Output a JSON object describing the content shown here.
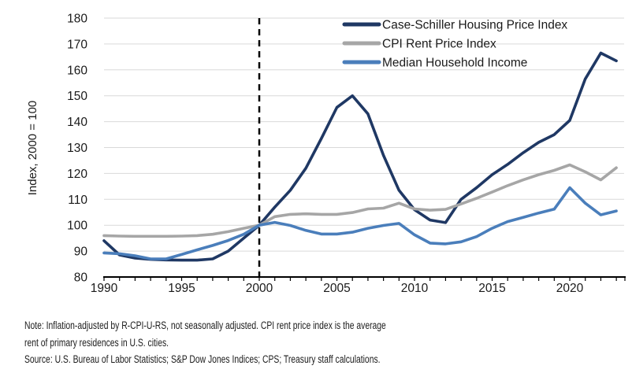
{
  "figure": {
    "note_lines": [
      "Note: Inflation-adjusted by R-CPI-U-RS, not seasonally adjusted. CPI rent price index is the average",
      "rent of primary residences in U.S. cities.",
      "Source: U.S. Bureau of Labor Statistics; S&P Dow Jones Indices; CPS; Treasury staff calculations."
    ]
  },
  "chart_data": {
    "type": "line",
    "title": "",
    "xlabel": "",
    "ylabel": "Index, 2000 = 100",
    "ylim": [
      80,
      180
    ],
    "y_tick_step": 10,
    "x": [
      1990,
      1991,
      1992,
      1993,
      1994,
      1995,
      1996,
      1997,
      1998,
      1999,
      2000,
      2001,
      2002,
      2003,
      2004,
      2005,
      2006,
      2007,
      2008,
      2009,
      2010,
      2011,
      2012,
      2013,
      2014,
      2015,
      2016,
      2017,
      2018,
      2019,
      2020,
      2021,
      2022,
      2023
    ],
    "x_axis_end": 2023.5,
    "x_tick_labels": [
      1990,
      1995,
      2000,
      2005,
      2010,
      2015,
      2020
    ],
    "grid": "horizontal",
    "legend_position": "inside-top-right",
    "axis_color": "#000000",
    "gridline_color": "#d9d9d9",
    "vline": {
      "x": 2000,
      "style": "dashed",
      "color": "#000000"
    },
    "series": [
      {
        "name": "Case-Schiller Housing Price Index",
        "slug": "case-schiller-housing-price-index",
        "color": "#1f3864",
        "values": [
          94,
          88.5,
          87.3,
          86.8,
          86.6,
          86.5,
          86.5,
          87,
          90,
          95,
          100,
          107,
          113.5,
          122,
          133.5,
          145.5,
          150,
          143,
          127,
          113.5,
          106,
          102,
          101,
          110,
          114.5,
          119.5,
          123.5,
          128,
          132,
          135,
          140.5,
          156.5,
          166.5,
          163.5
        ]
      },
      {
        "name": "CPI Rent Price Index",
        "slug": "cpi-rent-price-index",
        "color": "#a6a6a6",
        "values": [
          96,
          95.8,
          95.7,
          95.7,
          95.7,
          95.8,
          96,
          96.5,
          97.5,
          98.8,
          100,
          103.3,
          104.2,
          104.4,
          104.2,
          104.2,
          104.9,
          106.3,
          106.6,
          108.5,
          106.3,
          105.8,
          106.1,
          108.2,
          110.4,
          112.8,
          115.3,
          117.5,
          119.5,
          121.2,
          123.3,
          120.6,
          117.5,
          122.2
        ]
      },
      {
        "name": "Median Household Income",
        "slug": "median-household-income",
        "color": "#4a7ebb",
        "values": [
          89.3,
          89,
          88.2,
          87,
          87,
          88.7,
          90.5,
          92.2,
          94.1,
          96.5,
          100,
          101.1,
          99.9,
          98,
          96.6,
          96.6,
          97.3,
          98.8,
          99.9,
          100.7,
          96.3,
          93.1,
          92.8,
          93.6,
          95.6,
          98.8,
          101.4,
          103,
          104.7,
          106.2,
          114.5,
          108.5,
          104,
          105.5
        ]
      }
    ]
  }
}
